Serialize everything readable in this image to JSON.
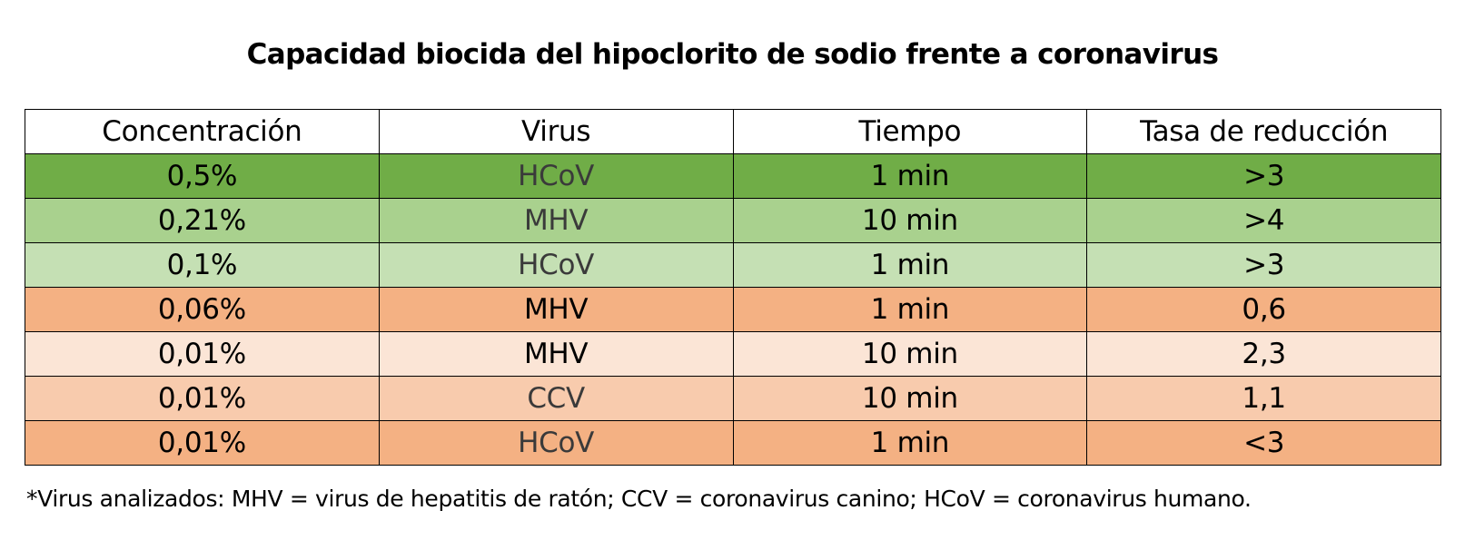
{
  "title": "Capacidad biocida del hipoclorito de sodio frente a coronavirus",
  "table": {
    "headers": [
      "Concentración",
      "Virus",
      "Tiempo",
      "Tasa de reducción"
    ],
    "rows": [
      {
        "concentration": "0,5%",
        "virus": "HCoV",
        "time": "1 min",
        "reduction": ">3",
        "color": "#70ad47"
      },
      {
        "concentration": "0,21%",
        "virus": "MHV",
        "time": "10 min",
        "reduction": ">4",
        "color": "#a9d18e"
      },
      {
        "concentration": "0,1%",
        "virus": "HCoV",
        "time": "1 min",
        "reduction": ">3",
        "color": "#c5e0b4"
      },
      {
        "concentration": "0,06%",
        "virus": "MHV",
        "time": "1 min",
        "reduction": "0,6",
        "color": "#f4b183"
      },
      {
        "concentration": "0,01%",
        "virus": "MHV",
        "time": "10 min",
        "reduction": "2,3",
        "color": "#fbe5d6"
      },
      {
        "concentration": "0,01%",
        "virus": "CCV",
        "time": "10 min",
        "reduction": "1,1",
        "color": "#f8cbad"
      },
      {
        "concentration": "0,01%",
        "virus": "HCoV",
        "time": "1 min",
        "reduction": "<3",
        "color": "#f4b183"
      }
    ]
  },
  "footnote": "*Virus analizados: MHV = virus de hepatitis de ratón; CCV = coronavirus canino; HCoV = coronavirus humano."
}
